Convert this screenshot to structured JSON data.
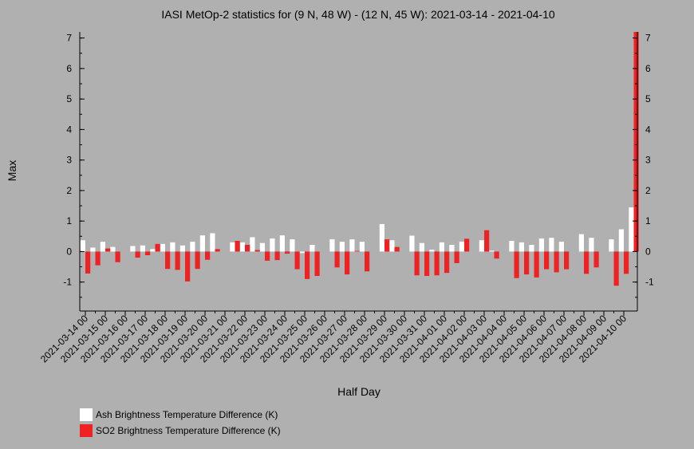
{
  "chart_data": {
    "type": "bar",
    "title": "IASI MetOp-2 statistics for (9 N, 48 W) - (12 N, 45 W): 2021-03-14 - 2021-04-10",
    "xlabel": "Half Day",
    "ylabel": "Max",
    "ylim": [
      -1.95,
      7.2
    ],
    "yticks": [
      -1,
      0,
      1,
      2,
      3,
      4,
      5,
      6,
      7
    ],
    "x_tick_labels": [
      "2021-03-14 00",
      "2021-03-15 00",
      "2021-03-16 00",
      "2021-03-17 00",
      "2021-03-18 00",
      "2021-03-19 00",
      "2021-03-20 00",
      "2021-03-21 00",
      "2021-03-22 00",
      "2021-03-23 00",
      "2021-03-24 00",
      "2021-03-25 00",
      "2021-03-26 00",
      "2021-03-27 00",
      "2021-03-28 00",
      "2021-03-29 00",
      "2021-03-30 00",
      "2021-03-31 00",
      "2021-04-01 00",
      "2021-04-02 00",
      "2021-04-03 00",
      "2021-04-04 00",
      "2021-04-05 00",
      "2021-04-06 00",
      "2021-04-07 00",
      "2021-04-08 00",
      "2021-04-09 00",
      "2021-04-10 00"
    ],
    "bar_slots_per_day": 2,
    "grid": false,
    "legend_position": "bottom-left",
    "series": [
      {
        "name": "Ash Brightness Temperature Difference (K)",
        "color": "#ffffff",
        "values": [
          0.37,
          0.13,
          0.32,
          0.15,
          null,
          0.18,
          0.2,
          0.08,
          0.25,
          0.3,
          0.2,
          0.32,
          0.53,
          0.6,
          null,
          0.3,
          0.3,
          0.47,
          0.28,
          0.43,
          0.53,
          0.4,
          -0.05,
          0.22,
          null,
          0.4,
          0.32,
          0.4,
          0.32,
          null,
          0.9,
          0.37,
          null,
          0.52,
          0.28,
          0.06,
          0.3,
          0.22,
          0.32,
          null,
          0.37,
          0.03,
          null,
          0.35,
          0.3,
          0.22,
          0.43,
          0.45,
          0.32,
          null,
          0.57,
          0.45,
          null,
          0.4,
          0.73,
          1.45
        ]
      },
      {
        "name": "SO2 Brightness Temperature Difference (K)",
        "color": "#ee2222",
        "values": [
          -0.72,
          -0.45,
          0.1,
          -0.35,
          null,
          -0.2,
          -0.12,
          0.25,
          -0.57,
          -0.6,
          -0.98,
          -0.57,
          -0.27,
          0.08,
          null,
          0.35,
          0.22,
          0.05,
          -0.3,
          -0.28,
          -0.07,
          -0.58,
          -0.9,
          -0.8,
          null,
          -0.52,
          -0.75,
          0.02,
          -0.65,
          null,
          0.4,
          0.15,
          null,
          -0.78,
          -0.8,
          -0.78,
          -0.7,
          -0.38,
          0.42,
          null,
          0.7,
          -0.23,
          null,
          -0.87,
          -0.75,
          -0.85,
          -0.58,
          -0.68,
          -0.58,
          null,
          -0.73,
          -0.52,
          null,
          -1.12,
          -0.73,
          7.2
        ]
      }
    ]
  }
}
